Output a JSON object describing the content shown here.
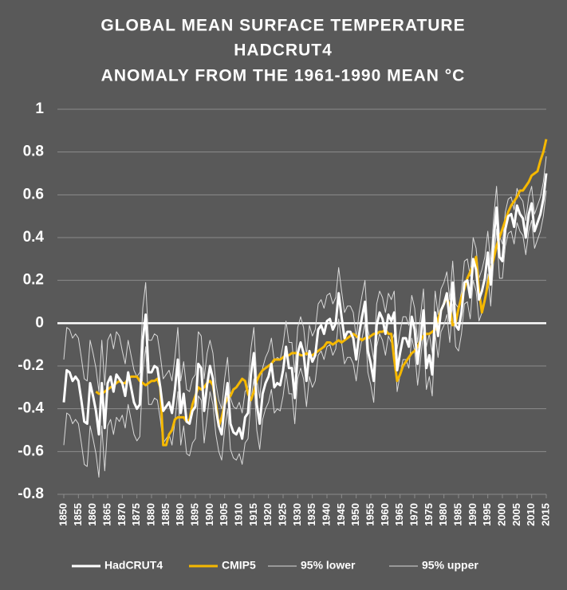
{
  "chart_data": {
    "type": "line",
    "title": [
      "GLOBAL  MEAN SURFACE TEMPERATURE",
      "HADCRUT4",
      "ANOMALY FROM THE 1961-1990 MEAN °C"
    ],
    "x": [
      1850,
      1851,
      1852,
      1853,
      1854,
      1855,
      1856,
      1857,
      1858,
      1859,
      1860,
      1861,
      1862,
      1863,
      1864,
      1865,
      1866,
      1867,
      1868,
      1869,
      1870,
      1871,
      1872,
      1873,
      1874,
      1875,
      1876,
      1877,
      1878,
      1879,
      1880,
      1881,
      1882,
      1883,
      1884,
      1885,
      1886,
      1887,
      1888,
      1889,
      1890,
      1891,
      1892,
      1893,
      1894,
      1895,
      1896,
      1897,
      1898,
      1899,
      1900,
      1901,
      1902,
      1903,
      1904,
      1905,
      1906,
      1907,
      1908,
      1909,
      1910,
      1911,
      1912,
      1913,
      1914,
      1915,
      1916,
      1917,
      1918,
      1919,
      1920,
      1921,
      1922,
      1923,
      1924,
      1925,
      1926,
      1927,
      1928,
      1929,
      1930,
      1931,
      1932,
      1933,
      1934,
      1935,
      1936,
      1937,
      1938,
      1939,
      1940,
      1941,
      1942,
      1943,
      1944,
      1945,
      1946,
      1947,
      1948,
      1949,
      1950,
      1951,
      1952,
      1953,
      1954,
      1955,
      1956,
      1957,
      1958,
      1959,
      1960,
      1961,
      1962,
      1963,
      1964,
      1965,
      1966,
      1967,
      1968,
      1969,
      1970,
      1971,
      1972,
      1973,
      1974,
      1975,
      1976,
      1977,
      1978,
      1979,
      1980,
      1981,
      1982,
      1983,
      1984,
      1985,
      1986,
      1987,
      1988,
      1989,
      1990,
      1991,
      1992,
      1993,
      1994,
      1995,
      1996,
      1997,
      1998,
      1999,
      2000,
      2001,
      2002,
      2003,
      2004,
      2005,
      2006,
      2007,
      2008,
      2009,
      2010,
      2011,
      2012,
      2013,
      2014,
      2015
    ],
    "series": [
      {
        "name": "HadCRUT4",
        "color": "#ffffff",
        "line_width": 3,
        "values": [
          -0.37,
          -0.22,
          -0.23,
          -0.27,
          -0.25,
          -0.27,
          -0.36,
          -0.46,
          -0.47,
          -0.28,
          -0.34,
          -0.41,
          -0.52,
          -0.28,
          -0.49,
          -0.28,
          -0.25,
          -0.32,
          -0.24,
          -0.26,
          -0.28,
          -0.34,
          -0.23,
          -0.3,
          -0.37,
          -0.4,
          -0.38,
          -0.08,
          0.04,
          -0.23,
          -0.23,
          -0.2,
          -0.21,
          -0.3,
          -0.41,
          -0.39,
          -0.37,
          -0.42,
          -0.31,
          -0.17,
          -0.42,
          -0.33,
          -0.46,
          -0.47,
          -0.41,
          -0.39,
          -0.19,
          -0.21,
          -0.41,
          -0.29,
          -0.2,
          -0.26,
          -0.4,
          -0.48,
          -0.52,
          -0.38,
          -0.28,
          -0.47,
          -0.51,
          -0.52,
          -0.49,
          -0.54,
          -0.44,
          -0.42,
          -0.24,
          -0.14,
          -0.38,
          -0.47,
          -0.33,
          -0.28,
          -0.25,
          -0.19,
          -0.3,
          -0.28,
          -0.29,
          -0.22,
          -0.11,
          -0.21,
          -0.21,
          -0.35,
          -0.14,
          -0.09,
          -0.14,
          -0.27,
          -0.13,
          -0.18,
          -0.15,
          -0.03,
          -0.01,
          -0.05,
          0.01,
          0.02,
          -0.03,
          0.0,
          0.14,
          0.03,
          -0.07,
          -0.04,
          -0.04,
          -0.07,
          -0.17,
          -0.05,
          0.03,
          0.1,
          -0.13,
          -0.19,
          -0.27,
          -0.01,
          0.05,
          0.02,
          -0.05,
          0.04,
          0.01,
          0.05,
          -0.22,
          -0.14,
          -0.07,
          -0.07,
          -0.11,
          0.03,
          -0.03,
          -0.19,
          -0.07,
          0.06,
          -0.21,
          -0.15,
          -0.24,
          0.05,
          -0.06,
          0.06,
          0.09,
          0.14,
          0.01,
          0.19,
          -0.01,
          -0.03,
          0.05,
          0.19,
          0.2,
          0.12,
          0.3,
          0.25,
          0.11,
          0.15,
          0.21,
          0.33,
          0.18,
          0.39,
          0.54,
          0.31,
          0.29,
          0.44,
          0.5,
          0.51,
          0.45,
          0.55,
          0.51,
          0.49,
          0.4,
          0.51,
          0.56,
          0.43,
          0.47,
          0.51,
          0.58,
          0.7
        ]
      },
      {
        "name": "CMIP5",
        "color": "#f5b800",
        "line_width": 3,
        "values": [
          null,
          null,
          null,
          null,
          null,
          null,
          null,
          null,
          null,
          null,
          null,
          -0.32,
          -0.33,
          -0.33,
          -0.32,
          -0.31,
          -0.3,
          -0.29,
          -0.28,
          -0.27,
          -0.28,
          -0.28,
          -0.26,
          -0.25,
          -0.25,
          -0.25,
          -0.27,
          -0.28,
          -0.29,
          -0.28,
          -0.27,
          -0.27,
          -0.26,
          -0.3,
          -0.57,
          -0.57,
          -0.52,
          -0.5,
          -0.45,
          -0.44,
          -0.44,
          -0.44,
          -0.46,
          -0.45,
          -0.38,
          -0.34,
          -0.3,
          -0.31,
          -0.3,
          -0.28,
          -0.27,
          -0.29,
          -0.37,
          -0.48,
          -0.44,
          -0.38,
          -0.35,
          -0.34,
          -0.31,
          -0.3,
          -0.28,
          -0.26,
          -0.27,
          -0.33,
          -0.36,
          -0.32,
          -0.27,
          -0.24,
          -0.22,
          -0.21,
          -0.2,
          -0.19,
          -0.17,
          -0.17,
          -0.17,
          -0.16,
          -0.15,
          -0.15,
          -0.14,
          -0.14,
          -0.14,
          -0.15,
          -0.15,
          -0.14,
          -0.15,
          -0.15,
          -0.14,
          -0.13,
          -0.12,
          -0.11,
          -0.09,
          -0.09,
          -0.1,
          -0.09,
          -0.08,
          -0.09,
          -0.08,
          -0.07,
          -0.06,
          -0.05,
          -0.06,
          -0.07,
          -0.08,
          -0.07,
          -0.07,
          -0.06,
          -0.05,
          -0.05,
          -0.04,
          -0.04,
          -0.03,
          -0.05,
          -0.05,
          -0.17,
          -0.27,
          -0.24,
          -0.2,
          -0.18,
          -0.16,
          -0.14,
          -0.13,
          -0.11,
          -0.08,
          -0.06,
          -0.05,
          -0.05,
          -0.04,
          -0.03,
          0.02,
          0.06,
          0.09,
          0.12,
          0.08,
          -0.01,
          0.0,
          0.07,
          0.12,
          0.16,
          0.21,
          0.24,
          0.27,
          0.31,
          0.15,
          0.05,
          0.11,
          0.18,
          0.25,
          0.3,
          0.36,
          0.4,
          0.44,
          0.48,
          0.52,
          0.55,
          0.57,
          0.59,
          0.62,
          0.62,
          0.64,
          0.66,
          0.69,
          0.7,
          0.71,
          0.76,
          0.8,
          0.86
        ]
      },
      {
        "name": "95% lower",
        "color": "#d9d9d9",
        "line_width": 1,
        "values": [
          -0.57,
          -0.42,
          -0.43,
          -0.47,
          -0.45,
          -0.47,
          -0.56,
          -0.66,
          -0.67,
          -0.48,
          -0.54,
          -0.61,
          -0.72,
          -0.48,
          -0.69,
          -0.48,
          -0.45,
          -0.52,
          -0.44,
          -0.46,
          -0.43,
          -0.49,
          -0.38,
          -0.45,
          -0.52,
          -0.55,
          -0.53,
          -0.23,
          -0.11,
          -0.38,
          -0.38,
          -0.35,
          -0.36,
          -0.45,
          -0.56,
          -0.54,
          -0.52,
          -0.57,
          -0.46,
          -0.32,
          -0.57,
          -0.48,
          -0.61,
          -0.62,
          -0.56,
          -0.54,
          -0.34,
          -0.36,
          -0.56,
          -0.44,
          -0.32,
          -0.38,
          -0.52,
          -0.6,
          -0.64,
          -0.5,
          -0.4,
          -0.59,
          -0.63,
          -0.64,
          -0.61,
          -0.66,
          -0.56,
          -0.54,
          -0.36,
          -0.26,
          -0.5,
          -0.59,
          -0.45,
          -0.4,
          -0.37,
          -0.31,
          -0.42,
          -0.4,
          -0.41,
          -0.34,
          -0.23,
          -0.33,
          -0.33,
          -0.47,
          -0.26,
          -0.21,
          -0.26,
          -0.39,
          -0.25,
          -0.3,
          -0.27,
          -0.15,
          -0.13,
          -0.17,
          -0.11,
          -0.1,
          -0.15,
          -0.12,
          0.02,
          -0.09,
          -0.19,
          -0.16,
          -0.16,
          -0.19,
          -0.27,
          -0.15,
          -0.07,
          0.0,
          -0.23,
          -0.29,
          -0.37,
          -0.11,
          -0.05,
          -0.08,
          -0.15,
          -0.06,
          -0.09,
          -0.05,
          -0.32,
          -0.24,
          -0.17,
          -0.17,
          -0.21,
          -0.07,
          -0.13,
          -0.29,
          -0.17,
          -0.04,
          -0.31,
          -0.25,
          -0.34,
          -0.05,
          -0.16,
          -0.04,
          -0.01,
          0.04,
          -0.09,
          0.09,
          -0.11,
          -0.13,
          -0.05,
          0.09,
          0.1,
          0.02,
          0.2,
          0.15,
          0.01,
          0.05,
          0.11,
          0.23,
          0.08,
          0.29,
          0.44,
          0.21,
          0.21,
          0.36,
          0.42,
          0.43,
          0.37,
          0.47,
          0.43,
          0.41,
          0.32,
          0.43,
          0.48,
          0.35,
          0.39,
          0.43,
          0.5,
          0.62
        ]
      },
      {
        "name": "95% upper",
        "color": "#d9d9d9",
        "line_width": 1,
        "values": [
          -0.17,
          -0.02,
          -0.03,
          -0.07,
          -0.05,
          -0.07,
          -0.16,
          -0.26,
          -0.27,
          -0.08,
          -0.14,
          -0.21,
          -0.32,
          -0.08,
          -0.29,
          -0.08,
          -0.05,
          -0.12,
          -0.04,
          -0.06,
          -0.13,
          -0.19,
          -0.08,
          -0.15,
          -0.22,
          -0.25,
          -0.23,
          0.07,
          0.19,
          -0.08,
          -0.08,
          -0.05,
          -0.06,
          -0.15,
          -0.26,
          -0.24,
          -0.22,
          -0.27,
          -0.16,
          -0.02,
          -0.27,
          -0.18,
          -0.31,
          -0.32,
          -0.26,
          -0.24,
          -0.04,
          -0.06,
          -0.26,
          -0.14,
          -0.08,
          -0.14,
          -0.28,
          -0.36,
          -0.4,
          -0.26,
          -0.16,
          -0.35,
          -0.39,
          -0.4,
          -0.37,
          -0.42,
          -0.32,
          -0.3,
          -0.12,
          -0.02,
          -0.26,
          -0.35,
          -0.21,
          -0.16,
          -0.13,
          -0.07,
          -0.18,
          -0.16,
          -0.17,
          -0.1,
          0.01,
          -0.09,
          -0.09,
          -0.23,
          -0.02,
          0.03,
          -0.02,
          -0.15,
          -0.01,
          -0.06,
          -0.03,
          0.09,
          0.11,
          0.07,
          0.13,
          0.14,
          0.09,
          0.12,
          0.26,
          0.15,
          0.05,
          0.08,
          0.08,
          0.05,
          -0.07,
          0.05,
          0.13,
          0.2,
          -0.03,
          -0.09,
          -0.17,
          0.09,
          0.15,
          0.12,
          0.05,
          0.14,
          0.11,
          0.15,
          -0.12,
          -0.04,
          0.03,
          0.03,
          -0.01,
          0.13,
          0.07,
          -0.09,
          0.03,
          0.16,
          -0.11,
          -0.05,
          -0.14,
          0.15,
          0.04,
          0.16,
          0.19,
          0.24,
          0.11,
          0.29,
          0.09,
          0.07,
          0.15,
          0.29,
          0.3,
          0.22,
          0.4,
          0.35,
          0.21,
          0.25,
          0.31,
          0.43,
          0.28,
          0.49,
          0.64,
          0.41,
          0.37,
          0.52,
          0.58,
          0.59,
          0.53,
          0.63,
          0.59,
          0.57,
          0.48,
          0.59,
          0.64,
          0.51,
          0.55,
          0.59,
          0.66,
          0.78
        ]
      }
    ],
    "xlim": [
      1850,
      2015
    ],
    "xticks": [
      1850,
      1855,
      1860,
      1865,
      1870,
      1875,
      1880,
      1885,
      1890,
      1895,
      1900,
      1905,
      1910,
      1915,
      1920,
      1925,
      1930,
      1935,
      1940,
      1945,
      1950,
      1955,
      1960,
      1965,
      1970,
      1975,
      1980,
      1985,
      1990,
      1995,
      2000,
      2005,
      2010,
      2015
    ],
    "ylim": [
      -0.8,
      1
    ],
    "yticks": [
      -0.8,
      -0.6,
      -0.4,
      -0.2,
      0,
      0.2,
      0.4,
      0.6,
      0.8,
      1
    ],
    "grid": true,
    "legend": "bottom"
  }
}
